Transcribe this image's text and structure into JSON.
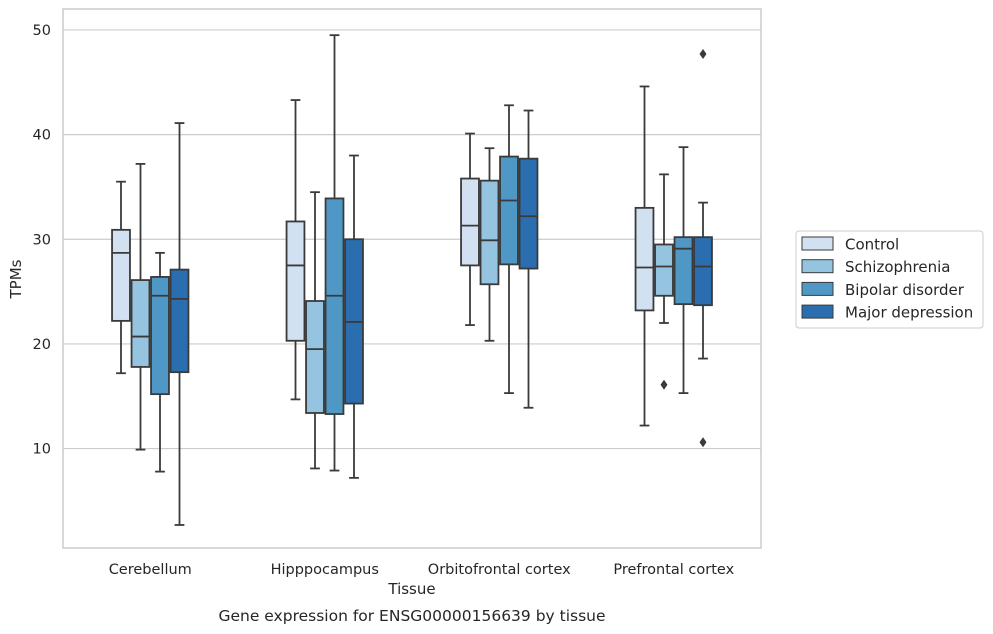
{
  "chart_data": {
    "type": "box",
    "title": "",
    "caption": "Gene expression for ENSG00000156639 by tissue",
    "xlabel": "Tissue",
    "ylabel": "TPMs",
    "ylim": [
      0.5,
      52
    ],
    "yticks": [
      10,
      20,
      30,
      40,
      50
    ],
    "grid": "horizontal",
    "legend_position": "right",
    "categories": [
      "Cerebellum",
      "Hipppocampus",
      "Orbitofrontal cortex",
      "Prefrontal cortex"
    ],
    "series": [
      {
        "name": "Control",
        "color": "#d1e1f1",
        "boxes": [
          {
            "whisker_low": 17.2,
            "q1": 22.2,
            "median": 28.7,
            "q3": 30.9,
            "whisker_high": 35.5,
            "outliers": []
          },
          {
            "whisker_low": 14.7,
            "q1": 20.3,
            "median": 27.5,
            "q3": 31.7,
            "whisker_high": 43.3,
            "outliers": []
          },
          {
            "whisker_low": 21.8,
            "q1": 27.5,
            "median": 31.3,
            "q3": 35.8,
            "whisker_high": 40.1,
            "outliers": []
          },
          {
            "whisker_low": 12.2,
            "q1": 23.2,
            "median": 27.3,
            "q3": 33.0,
            "whisker_high": 44.6,
            "outliers": []
          }
        ]
      },
      {
        "name": "Schizophrenia",
        "color": "#94c4df",
        "boxes": [
          {
            "whisker_low": 9.9,
            "q1": 17.8,
            "median": 20.7,
            "q3": 26.1,
            "whisker_high": 37.2,
            "outliers": []
          },
          {
            "whisker_low": 8.1,
            "q1": 13.4,
            "median": 19.5,
            "q3": 24.1,
            "whisker_high": 34.5,
            "outliers": []
          },
          {
            "whisker_low": 20.3,
            "q1": 25.7,
            "median": 29.9,
            "q3": 35.6,
            "whisker_high": 38.7,
            "outliers": []
          },
          {
            "whisker_low": 22.0,
            "q1": 24.6,
            "median": 27.4,
            "q3": 29.5,
            "whisker_high": 36.2,
            "outliers": [
              16.1
            ]
          }
        ]
      },
      {
        "name": "Bipolar disorder",
        "color": "#4f98c6",
        "boxes": [
          {
            "whisker_low": 7.8,
            "q1": 15.2,
            "median": 24.6,
            "q3": 26.4,
            "whisker_high": 28.7,
            "outliers": []
          },
          {
            "whisker_low": 7.9,
            "q1": 13.3,
            "median": 24.6,
            "q3": 33.9,
            "whisker_high": 49.5,
            "outliers": []
          },
          {
            "whisker_low": 15.3,
            "q1": 27.6,
            "median": 33.7,
            "q3": 37.9,
            "whisker_high": 42.8,
            "outliers": []
          },
          {
            "whisker_low": 15.3,
            "q1": 23.8,
            "median": 29.1,
            "q3": 30.2,
            "whisker_high": 38.8,
            "outliers": []
          }
        ]
      },
      {
        "name": "Major depression",
        "color": "#2a6eb0",
        "boxes": [
          {
            "whisker_low": 2.7,
            "q1": 17.3,
            "median": 24.3,
            "q3": 27.1,
            "whisker_high": 41.1,
            "outliers": []
          },
          {
            "whisker_low": 7.2,
            "q1": 14.3,
            "median": 22.1,
            "q3": 30.0,
            "whisker_high": 38.0,
            "outliers": []
          },
          {
            "whisker_low": 13.9,
            "q1": 27.2,
            "median": 32.2,
            "q3": 37.7,
            "whisker_high": 42.3,
            "outliers": []
          },
          {
            "whisker_low": 18.6,
            "q1": 23.7,
            "median": 27.4,
            "q3": 30.2,
            "whisker_high": 33.5,
            "outliers": [
              47.7,
              10.6
            ]
          }
        ]
      }
    ]
  }
}
